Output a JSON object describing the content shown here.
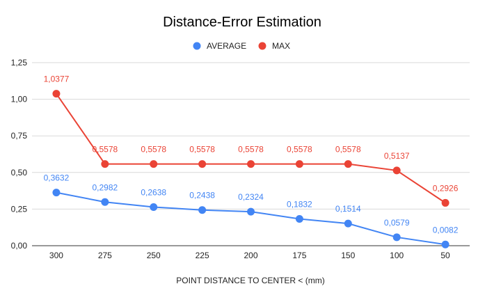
{
  "chart_data": {
    "type": "line",
    "title": "Distance-Error Estimation",
    "xlabel": "POINT DISTANCE TO CENTER <  (mm)",
    "ylabel": "",
    "categories": [
      "300",
      "275",
      "250",
      "225",
      "200",
      "175",
      "150",
      "100",
      "50"
    ],
    "ylim": [
      0,
      1.25
    ],
    "y_ticks": [
      0,
      0.25,
      0.5,
      0.75,
      1.0,
      1.25
    ],
    "y_tick_labels": [
      "0,00",
      "0,25",
      "0,50",
      "0,75",
      "1,00",
      "1,25"
    ],
    "grid": true,
    "legend_position": "top",
    "series": [
      {
        "name": "AVERAGE",
        "color": "#4285f4",
        "values": [
          0.3632,
          0.2982,
          0.2638,
          0.2438,
          0.2324,
          0.1832,
          0.1514,
          0.0579,
          0.0082
        ],
        "labels": [
          "0,3632",
          "0,2982",
          "0,2638",
          "0,2438",
          "0,2324",
          "0,1832",
          "0,1514",
          "0,0579",
          "0,0082"
        ]
      },
      {
        "name": "MAX",
        "color": "#ea4335",
        "values": [
          1.0377,
          0.5578,
          0.5578,
          0.5578,
          0.5578,
          0.5578,
          0.5578,
          0.5137,
          0.2926
        ],
        "labels": [
          "1,0377",
          "0,5578",
          "0,5578",
          "0,5578",
          "0,5578",
          "0,5578",
          "0,5578",
          "0,5137",
          "0,2926"
        ]
      }
    ]
  }
}
